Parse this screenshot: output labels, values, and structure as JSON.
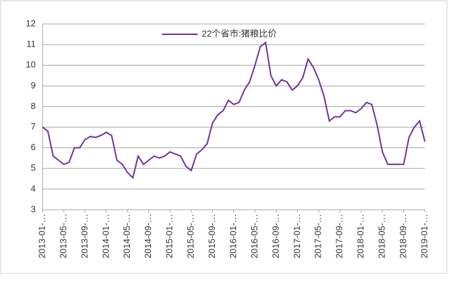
{
  "chart_data": {
    "type": "line",
    "categories": [
      "2013-01-…",
      null,
      null,
      null,
      "2013-05-…",
      null,
      null,
      null,
      "2013-09-…",
      null,
      null,
      null,
      "2014-01-…",
      null,
      null,
      null,
      "2014-05-…",
      null,
      null,
      null,
      "2014-09-…",
      null,
      null,
      null,
      "2015-01-…",
      null,
      null,
      null,
      "2015-05-…",
      null,
      null,
      null,
      "2015-09-…",
      null,
      null,
      null,
      "2016-01-…",
      null,
      null,
      null,
      "2016-05-…",
      null,
      null,
      null,
      "2016-09-…",
      null,
      null,
      null,
      "2017-01-…",
      null,
      null,
      null,
      "2017-05-…",
      null,
      null,
      null,
      "2017-09-…",
      null,
      null,
      null,
      "2018-01-…",
      null,
      null,
      null,
      "2018-05-…",
      null,
      null,
      null,
      "2018-09-…",
      null,
      null,
      null,
      "2019-01-…"
    ],
    "series": [
      {
        "name": "22个省市:猪粮比价",
        "color": "#7030a0",
        "values": [
          7.0,
          6.8,
          5.6,
          5.4,
          5.2,
          5.3,
          6.0,
          6.0,
          6.4,
          6.55,
          6.5,
          6.6,
          6.75,
          6.6,
          5.4,
          5.2,
          4.8,
          4.55,
          5.6,
          5.2,
          5.4,
          5.6,
          5.5,
          5.6,
          5.8,
          5.7,
          5.6,
          5.1,
          4.9,
          5.7,
          5.9,
          6.2,
          7.2,
          7.6,
          7.8,
          8.3,
          8.1,
          8.2,
          8.8,
          9.2,
          10.0,
          10.9,
          11.1,
          9.5,
          9.0,
          9.3,
          9.2,
          8.8,
          9.0,
          9.4,
          10.3,
          9.9,
          9.3,
          8.5,
          7.3,
          7.5,
          7.5,
          7.8,
          7.8,
          7.7,
          7.9,
          8.2,
          8.1,
          7.1,
          5.8,
          5.2,
          5.2,
          5.2,
          5.2,
          6.5,
          7.0,
          7.3,
          6.3
        ]
      }
    ],
    "ylim": [
      3,
      12
    ],
    "yticks": [
      3,
      4,
      5,
      6,
      7,
      8,
      9,
      10,
      11,
      12
    ],
    "grid": true,
    "legend": "top"
  }
}
